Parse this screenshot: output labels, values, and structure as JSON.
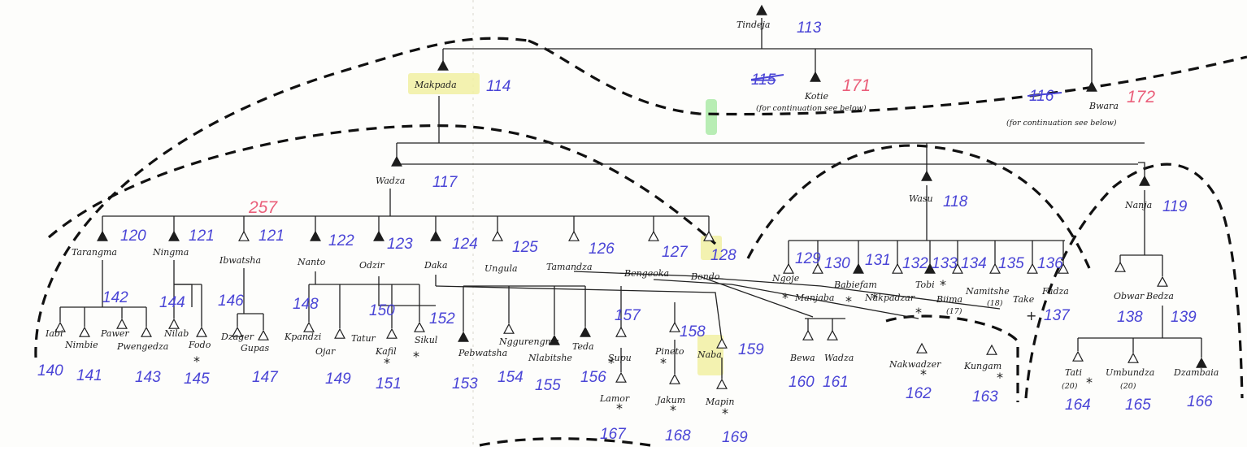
{
  "title": "Tindeja 113",
  "diagram": {
    "nodes": {
      "tindeja": {
        "name": "Tindeja",
        "num": "113"
      },
      "makpada": {
        "name": "Makpada",
        "num": "114"
      },
      "kotie": {
        "name": "Kotie",
        "num_struck": "115",
        "num": "171",
        "note": "(for continuation see below)"
      },
      "bwara": {
        "name": "Bwara",
        "num_struck": "116",
        "num": "172",
        "note": "(for continuation see below)"
      },
      "wadza": {
        "name": "Wadza",
        "num": "117"
      },
      "wasu": {
        "name": "Wasu",
        "num": "118"
      },
      "nanja": {
        "name": "Nanja",
        "num": "119"
      },
      "gen_label": "257",
      "tarangma": {
        "name": "Tarangma",
        "num": "120"
      },
      "ningma": {
        "name": "Ningma",
        "num": "121"
      },
      "ibwatsha": {
        "name": "Ibwatsha",
        "num": "121"
      },
      "nanto": {
        "name": "Nanto",
        "num": "122"
      },
      "odzir": {
        "name": "Odzir",
        "num": "123"
      },
      "daka": {
        "name": "Daka",
        "num": "124"
      },
      "ungula": {
        "name": "Ungula",
        "num": "125"
      },
      "tamandza": {
        "name": "Tamandza",
        "num": "126"
      },
      "bengeoka": {
        "name": "Bengeoka",
        "num": "127"
      },
      "bondo": {
        "name": "Bondo",
        "num": "128"
      },
      "ngoje": {
        "name": "Ngoje",
        "num": "129"
      },
      "manjaba": {
        "name": "Manjaba",
        "num": "130"
      },
      "babiefam": {
        "name": "Babiefam",
        "num": "131"
      },
      "nakpadzar": {
        "name": "Nakpadzar",
        "num": "132"
      },
      "tobi": {
        "name": "Tobi",
        "num": "133"
      },
      "biima": {
        "name": "Biima",
        "num": "134",
        "note": "(17)"
      },
      "namitshe": {
        "name": "Namitshe",
        "num": "135",
        "note": "(18)"
      },
      "take": {
        "name": "Take",
        "num": "136"
      },
      "fadza": {
        "name": "Fadza",
        "num": "137"
      },
      "obwar": {
        "name": "Obwar",
        "num": "138"
      },
      "bedza": {
        "name": "Bedza",
        "num": "139"
      },
      "iabi": {
        "name": "Iabi",
        "num": "140"
      },
      "nimbie": {
        "name": "Nimbie",
        "num": "141"
      },
      "pawer": {
        "name": "Pawer",
        "num": "142"
      },
      "pwengedza": {
        "name": "Pwengedza",
        "num": "143"
      },
      "nilab": {
        "name": "Nilab",
        "num": "144"
      },
      "fodo": {
        "name": "Fodo",
        "num": "145"
      },
      "dzager": {
        "name": "Dzager",
        "num": "146"
      },
      "gupas": {
        "name": "Gupas",
        "num": "147"
      },
      "kpandzi": {
        "name": "Kpandzi",
        "num": "148"
      },
      "ojar": {
        "name": "Ojar",
        "num": "149"
      },
      "tatur": {
        "name": "Tatur",
        "num": "150"
      },
      "kafil": {
        "name": "Kafil",
        "num": "151"
      },
      "sikul": {
        "name": "Sikul",
        "num": "152"
      },
      "pebwatsha": {
        "name": "Pebwatsha",
        "num": "153"
      },
      "nggurengma": {
        "name": "Nggurengma",
        "num": "154"
      },
      "nlabitshe": {
        "name": "Nlabitshe",
        "num": "155"
      },
      "teda": {
        "name": "Teda",
        "num": "156"
      },
      "supu": {
        "name": "Supu",
        "num": "157"
      },
      "pineto": {
        "name": "Pineto",
        "num": "158"
      },
      "naba": {
        "name": "Naba",
        "num": "159"
      },
      "bewa": {
        "name": "Bewa",
        "num": "160"
      },
      "wadza2": {
        "name": "Wadza",
        "num": "161"
      },
      "nakwadzer": {
        "name": "Nakwadzer",
        "num": "162"
      },
      "kungam": {
        "name": "Kungam",
        "num": "163"
      },
      "tati": {
        "name": "Tati",
        "num": "164",
        "note": "(20)"
      },
      "umbundza": {
        "name": "Umbundza",
        "num": "165",
        "note": "(20)"
      },
      "dzambaia": {
        "name": "Dzambaia",
        "num": "166"
      },
      "lamor": {
        "name": "Lamor",
        "num": "167"
      },
      "jakum": {
        "name": "Jakum",
        "num": "168"
      },
      "mapin": {
        "name": "Mapin",
        "num": "169"
      }
    },
    "symbols": {
      "deceased": "*",
      "cross": "+"
    },
    "colors": {
      "ink": "#1d1d1d",
      "blue_numbers": "#4a45d6",
      "red_numbers": "#ea5f7a",
      "highlight": "#f1f0a2"
    }
  }
}
